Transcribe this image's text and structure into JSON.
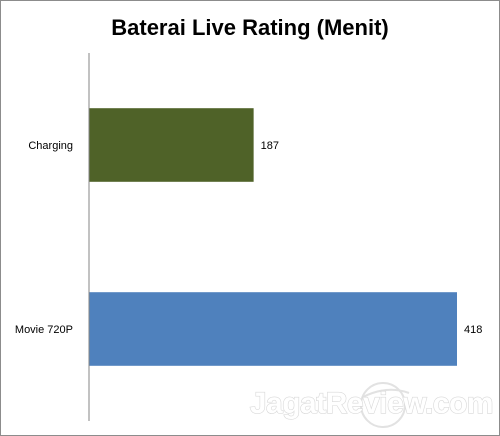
{
  "chart_data": {
    "type": "bar",
    "orientation": "horizontal",
    "title": "Baterai Live Rating (Menit)",
    "categories": [
      "Charging",
      "Movie 720P"
    ],
    "series": [
      {
        "values": [
          187,
          418
        ],
        "colors": [
          "#4f6228",
          "#4f81bd"
        ]
      }
    ],
    "data_labels": [
      "187",
      "418"
    ],
    "xlim": [
      0,
      418
    ],
    "grid": false,
    "legend": "none"
  },
  "watermark": {
    "text": "JagatReview.com"
  }
}
